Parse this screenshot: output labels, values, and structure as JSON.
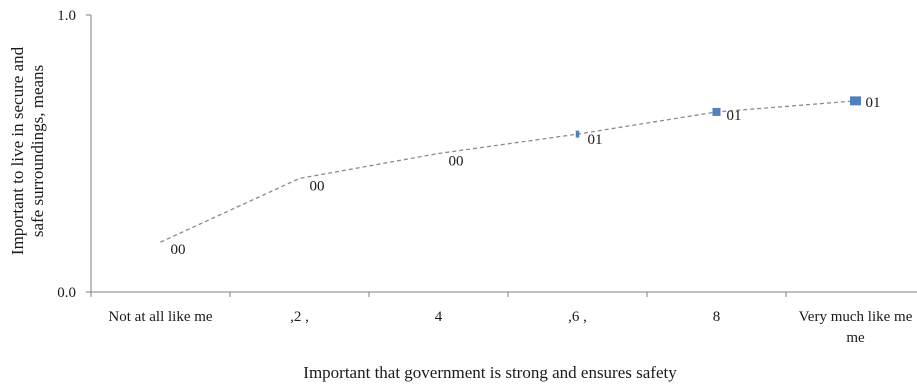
{
  "chart_data": {
    "type": "line",
    "title": "",
    "xlabel": "Important that government is strong and ensures safety",
    "ylabel": "Important to live in secure and safe surroundings, means",
    "ylim": [
      0.0,
      1.0
    ],
    "y_tick_labels": [
      "0.0",
      "1.0"
    ],
    "categories": [
      "Not at all like me",
      ",2 ,",
      "4",
      ",6 ,",
      "8",
      "Very much like me"
    ],
    "categories_display": [
      [
        "Not at all like me"
      ],
      [
        ",2 ,"
      ],
      [
        "4"
      ],
      [
        ",6 ,"
      ],
      [
        "8"
      ],
      [
        "Very much like me",
        "me"
      ]
    ],
    "x": [
      1,
      2,
      3,
      4,
      5,
      6
    ],
    "values": [
      0.18,
      0.41,
      0.5,
      0.57,
      0.65,
      0.69
    ],
    "data_labels": [
      "00",
      "00",
      "00",
      "01",
      "01",
      "01"
    ],
    "marker_weights": [
      0,
      0,
      0,
      1,
      2,
      3
    ],
    "series_color": "#4f81bd",
    "line_color": "#8c8c8c",
    "line_style": "dashed",
    "grid": false,
    "legend": "none"
  }
}
